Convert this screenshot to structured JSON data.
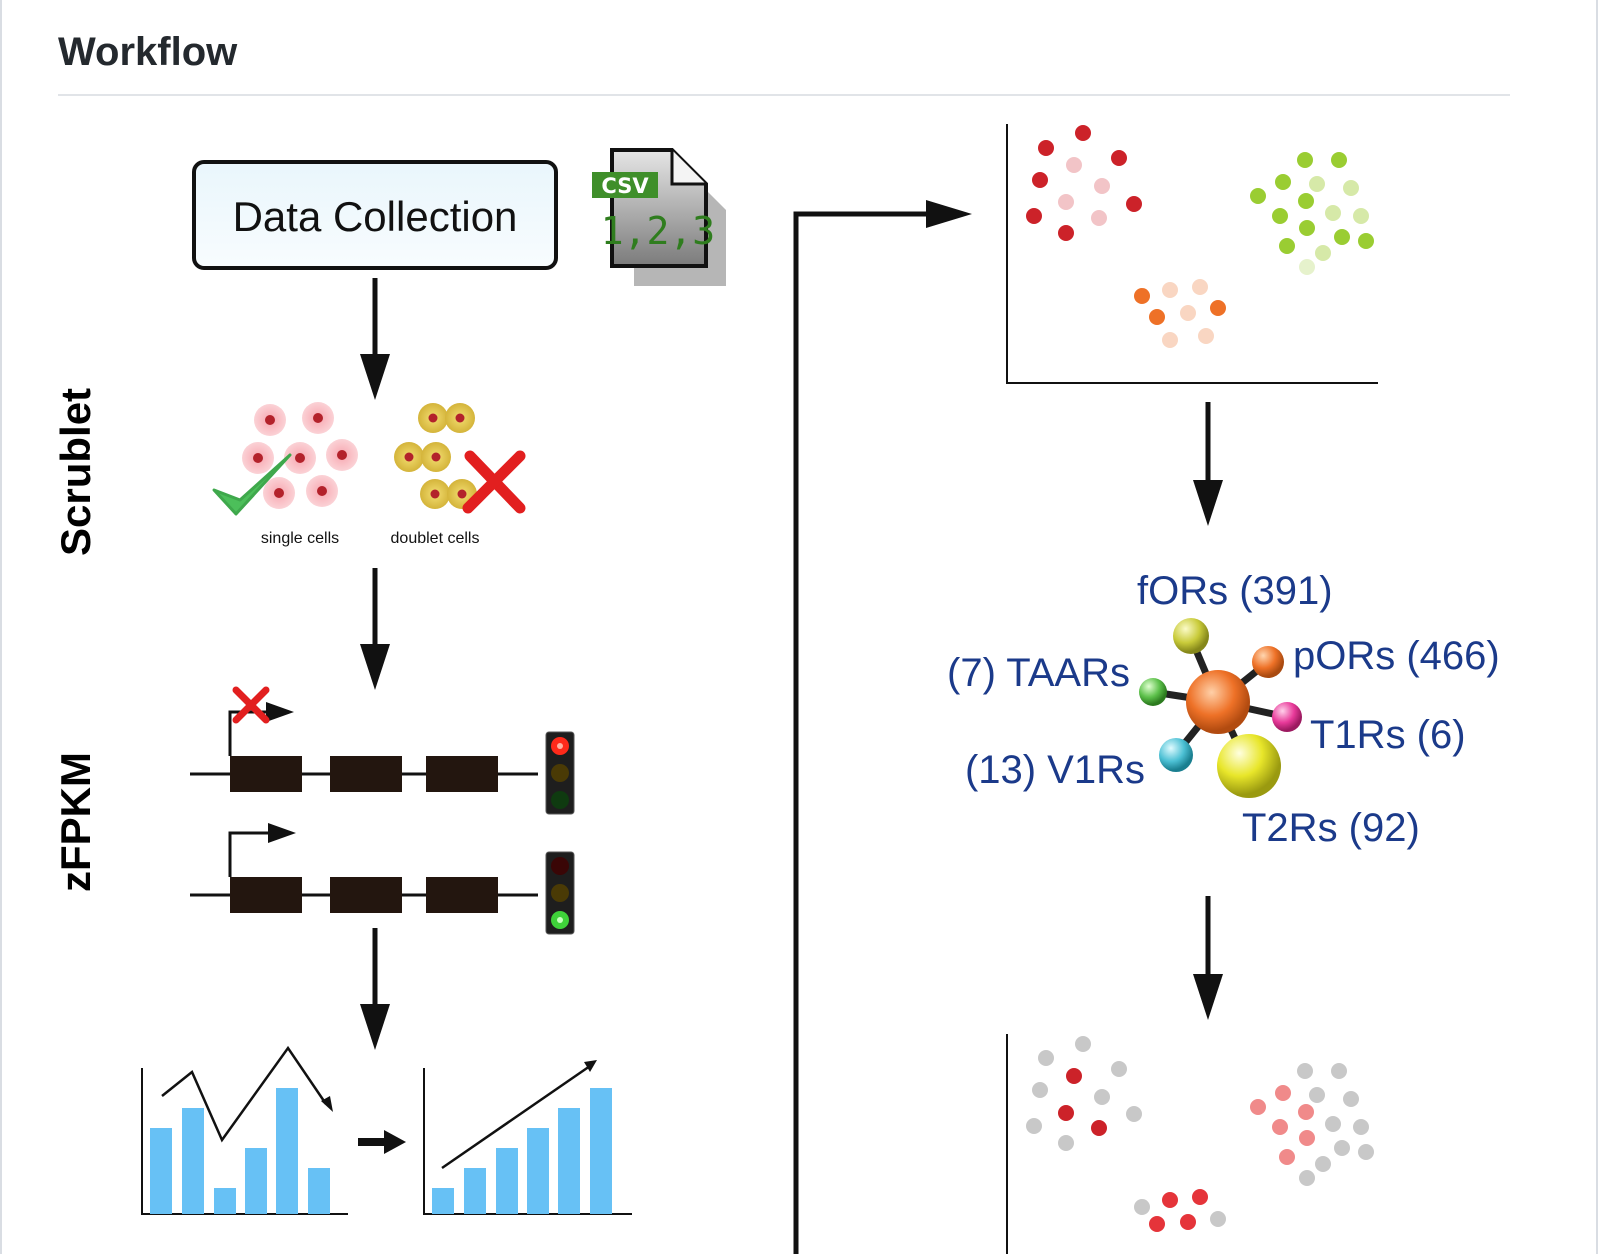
{
  "header": {
    "title": "Workflow"
  },
  "stages": {
    "data_collection": "Data Collection",
    "scrublet": "Scrublet",
    "zfpkm": "zFPKM"
  },
  "csv_icon": {
    "tag": "CSV",
    "numbers": "1,2,3"
  },
  "cells": {
    "single_label": "single cells",
    "doublet_label": "doublet cells"
  },
  "receptors": {
    "fors": "fORs (391)",
    "pors": "pORs (466)",
    "taars": "(7) TAARs",
    "t1rs": "T1Rs (6)",
    "v1rs": "(13) V1Rs",
    "t2rs": "T2Rs (92)"
  },
  "colors": {
    "arrow": "#111111",
    "bar": "#67c1f5",
    "receptor_text": "#1b3a8a",
    "cluster_red": "#cc2229",
    "cluster_green": "#9acd32",
    "cluster_orange": "#ee7127",
    "inactive_grey": "#c8c8c8"
  },
  "icons": [
    "csv-file-icon",
    "checkmark-icon",
    "cross-icon",
    "traffic-light-icon",
    "molecule-icon"
  ]
}
